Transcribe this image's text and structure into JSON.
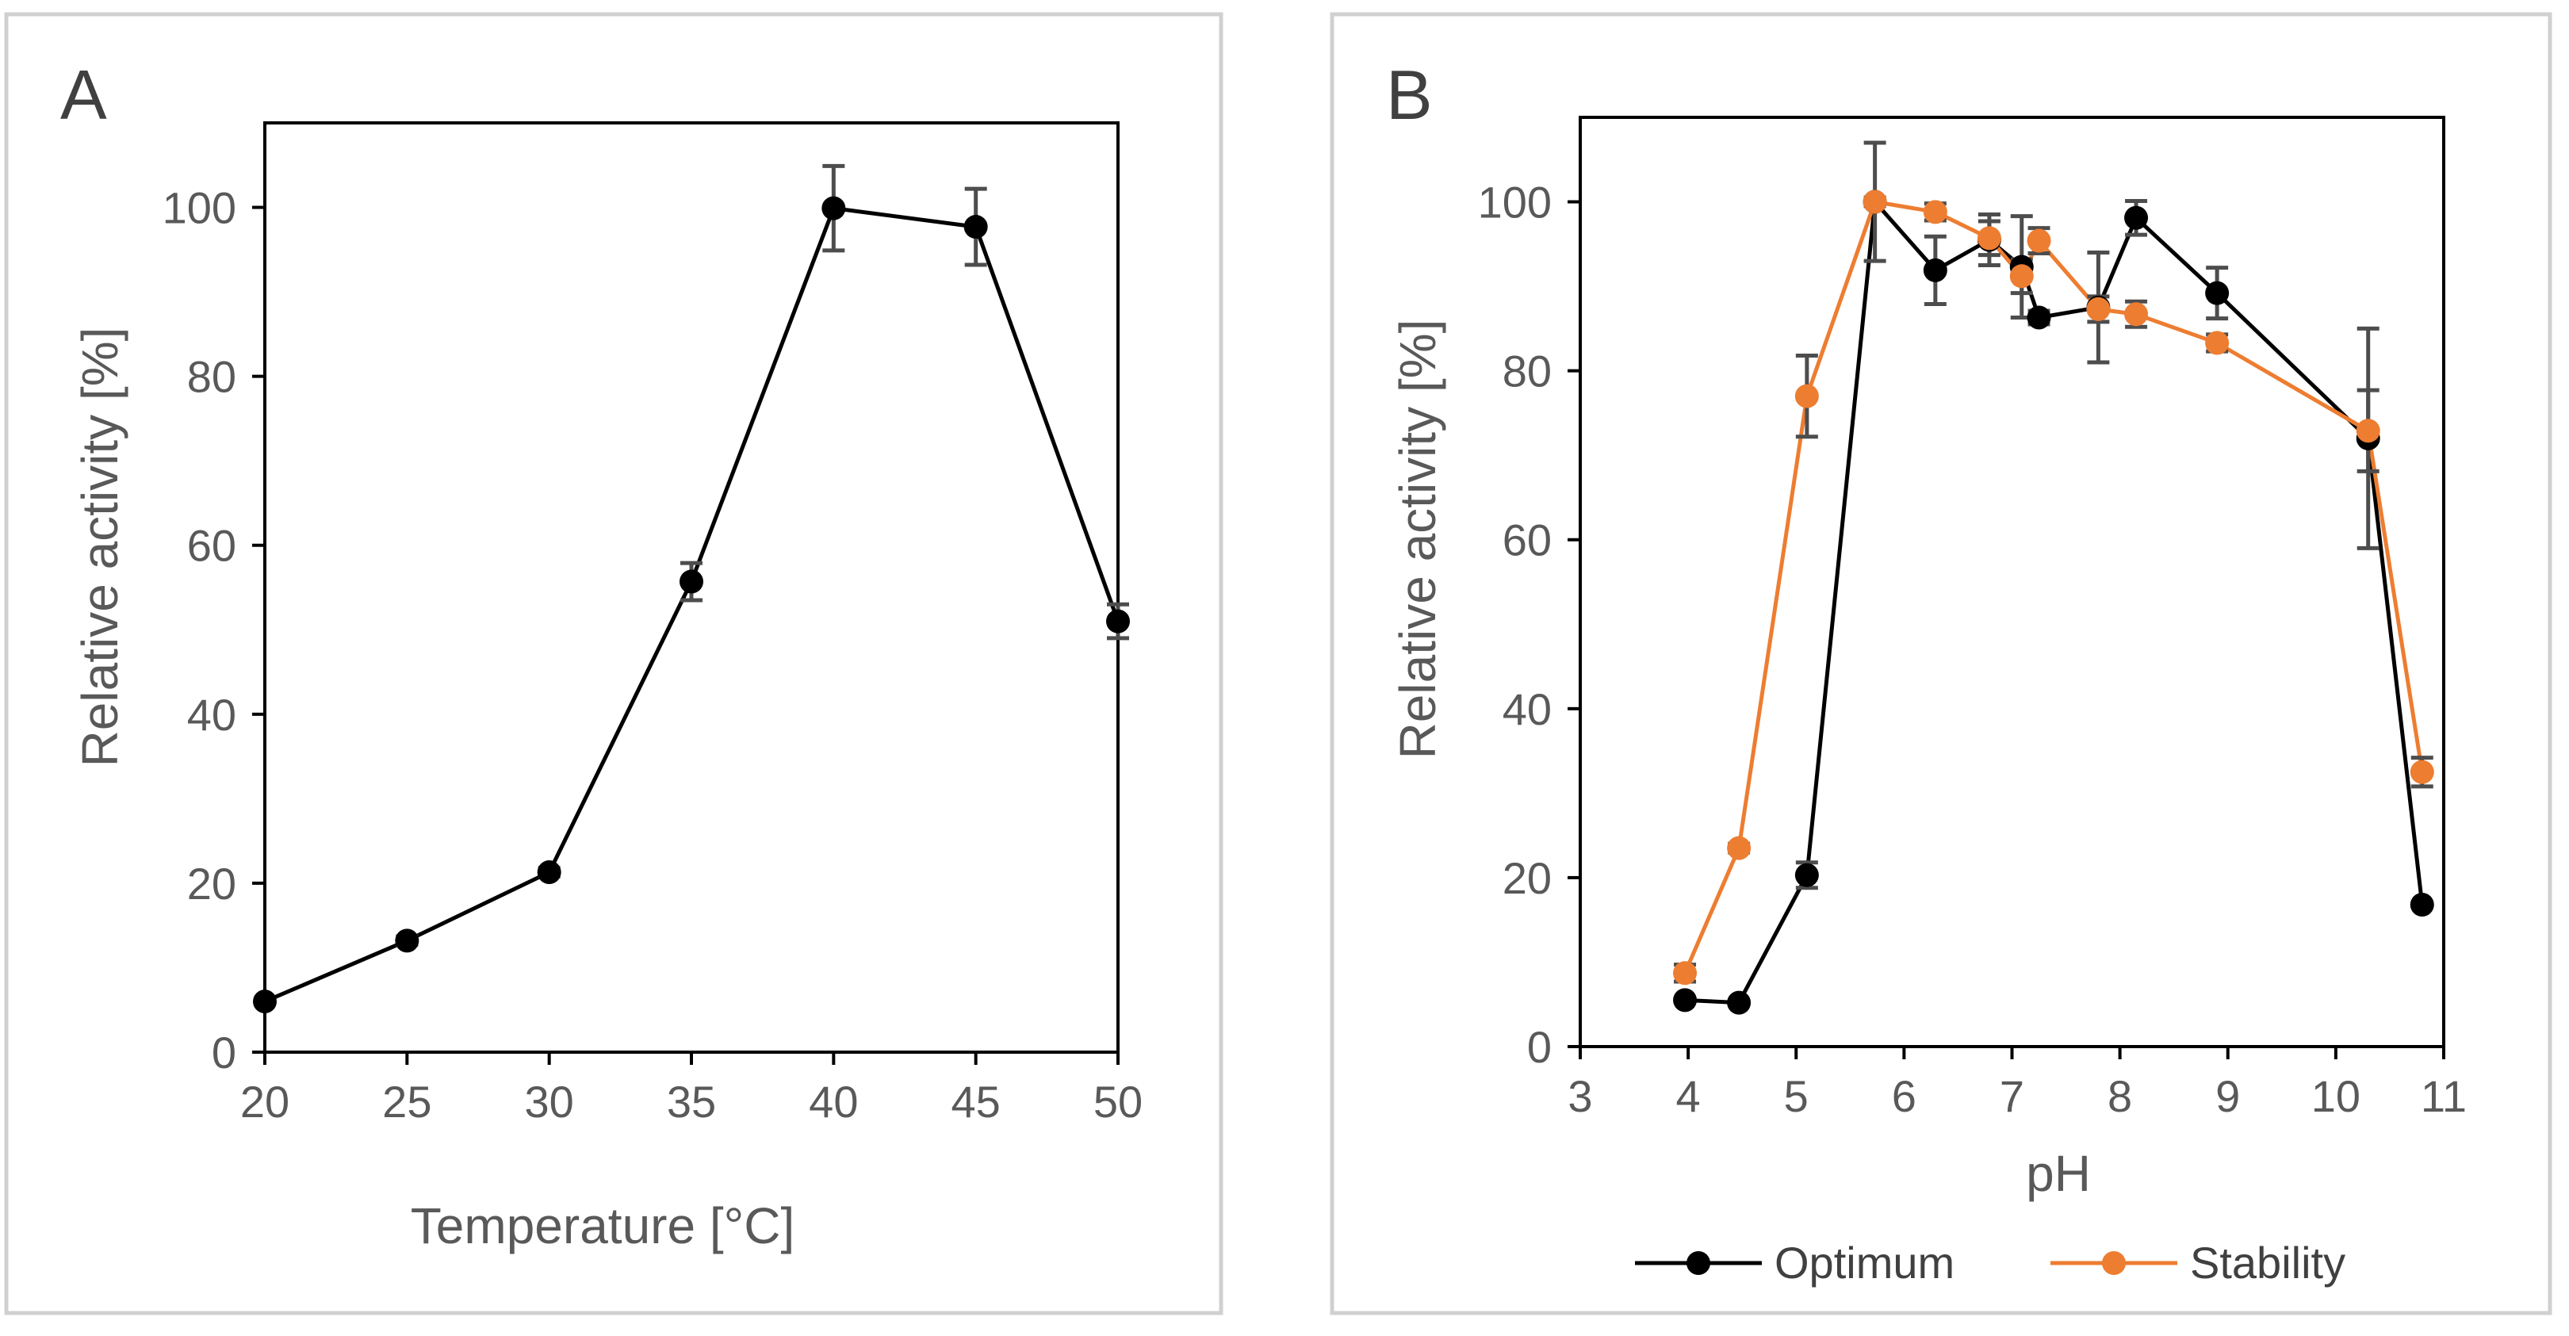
{
  "chart_data": [
    {
      "panel": "A",
      "type": "line",
      "xlabel": "Temperature [°C]",
      "ylabel": "Relative activity [%]",
      "xlim": [
        20,
        50
      ],
      "ylim": [
        0,
        110
      ],
      "xticks": [
        20,
        25,
        30,
        35,
        40,
        45,
        50
      ],
      "yticks": [
        0,
        20,
        40,
        60,
        80,
        100
      ],
      "grid": false,
      "series": [
        {
          "name": "Temperature",
          "color": "#000000",
          "x": [
            20,
            25,
            30,
            35,
            40,
            45,
            50
          ],
          "y": [
            6,
            13.2,
            21.3,
            55.7,
            99.9,
            97.7,
            51
          ],
          "err": [
            0,
            0.5,
            0.5,
            2.2,
            5,
            4.5,
            2
          ]
        }
      ]
    },
    {
      "panel": "B",
      "type": "line",
      "xlabel": "pH",
      "ylabel": "Relative activity [%]",
      "xlim": [
        3,
        11
      ],
      "ylim": [
        0,
        110
      ],
      "xticks": [
        3,
        4,
        5,
        6,
        7,
        8,
        9,
        10,
        11
      ],
      "yticks": [
        0,
        20,
        40,
        60,
        80,
        100
      ],
      "grid": false,
      "legend": "bottom",
      "series": [
        {
          "name": "Optimum",
          "color": "#000000",
          "x": [
            3.97,
            4.47,
            5.1,
            5.73,
            6.29,
            6.79,
            7.09,
            7.25,
            7.8,
            8.15,
            8.9,
            10.3,
            10.8
          ],
          "y": [
            5.5,
            5.2,
            20.3,
            100,
            91.9,
            95.5,
            92.3,
            86.3,
            87.5,
            98.1,
            89.2,
            72,
            16.8
          ],
          "err": [
            0,
            0,
            1.5,
            7,
            4,
            3,
            6,
            0.8,
            6.5,
            2,
            3,
            13,
            0
          ]
        },
        {
          "name": "Stability",
          "color": "#ED7D31",
          "x": [
            3.97,
            4.47,
            5.1,
            5.73,
            6.29,
            6.79,
            7.09,
            7.25,
            7.8,
            8.15,
            8.9,
            10.3,
            10.8
          ],
          "y": [
            8.7,
            23.5,
            77,
            100,
            98.8,
            95.7,
            91.2,
            95.4,
            87.3,
            86.7,
            83.3,
            72.9,
            32.5
          ],
          "err": [
            1,
            0.5,
            4.8,
            0.5,
            1,
            2,
            2,
            1.5,
            1.5,
            1.5,
            1,
            4.8,
            1.7
          ]
        }
      ]
    }
  ]
}
